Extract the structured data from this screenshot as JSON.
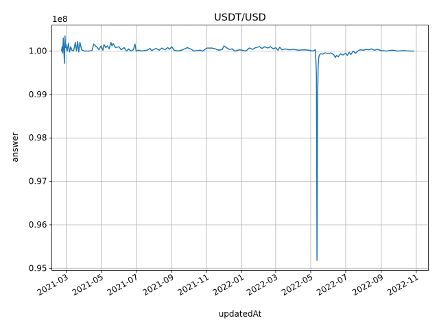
{
  "chart_data": {
    "type": "line",
    "title": "USDT/USD",
    "xlabel": "updatedAt",
    "ylabel": "answer",
    "y_offset_label": "1e8",
    "grid": true,
    "line_color": "#1f77b4",
    "xlim": [
      "2021-02-04",
      "2022-11-22"
    ],
    "ylim": [
      0.9495,
      1.006
    ],
    "x_ticks": [
      {
        "date": "2021-03-01",
        "label": "2021-03"
      },
      {
        "date": "2021-05-01",
        "label": "2021-05"
      },
      {
        "date": "2021-07-01",
        "label": "2021-07"
      },
      {
        "date": "2021-09-01",
        "label": "2021-09"
      },
      {
        "date": "2021-11-01",
        "label": "2021-11"
      },
      {
        "date": "2022-01-01",
        "label": "2022-01"
      },
      {
        "date": "2022-03-01",
        "label": "2022-03"
      },
      {
        "date": "2022-05-01",
        "label": "2022-05"
      },
      {
        "date": "2022-07-01",
        "label": "2022-07"
      },
      {
        "date": "2022-09-01",
        "label": "2022-09"
      },
      {
        "date": "2022-11-01",
        "label": "2022-11"
      }
    ],
    "y_ticks": [
      {
        "value": 0.95,
        "label": "0.95"
      },
      {
        "value": 0.96,
        "label": "0.96"
      },
      {
        "value": 0.97,
        "label": "0.97"
      },
      {
        "value": 0.98,
        "label": "0.98"
      },
      {
        "value": 0.99,
        "label": "0.99"
      },
      {
        "value": 1.0,
        "label": "1.00"
      }
    ],
    "series": [
      {
        "points": [
          [
            "2021-02-21",
            1.0
          ],
          [
            "2021-02-22",
            1.001
          ],
          [
            "2021-02-23",
            0.9995
          ],
          [
            "2021-02-24",
            1.003
          ],
          [
            "2021-02-25",
            1.0005
          ],
          [
            "2021-02-26",
            0.9972
          ],
          [
            "2021-02-27",
            1.0035
          ],
          [
            "2021-02-28",
            1.0008
          ],
          [
            "2021-03-01",
            1.0015
          ],
          [
            "2021-03-03",
            1.0
          ],
          [
            "2021-03-05",
            1.0018
          ],
          [
            "2021-03-07",
            0.9998
          ],
          [
            "2021-03-09",
            1.001
          ],
          [
            "2021-03-11",
            1.0002
          ],
          [
            "2021-03-14",
            1.0
          ],
          [
            "2021-03-17",
            1.002
          ],
          [
            "2021-03-19",
            1.0
          ],
          [
            "2021-03-21",
            1.0022
          ],
          [
            "2021-03-23",
            0.9998
          ],
          [
            "2021-03-25",
            1.002
          ],
          [
            "2021-03-28",
            1.0003
          ],
          [
            "2021-04-01",
            1.0
          ],
          [
            "2021-04-10",
            1.0
          ],
          [
            "2021-04-15",
            1.0001
          ],
          [
            "2021-04-18",
            1.0016
          ],
          [
            "2021-04-21",
            1.0012
          ],
          [
            "2021-04-24",
            1.0009
          ],
          [
            "2021-04-27",
            1.0003
          ],
          [
            "2021-05-01",
            1.0012
          ],
          [
            "2021-05-04",
            1.0002
          ],
          [
            "2021-05-06",
            1.0015
          ],
          [
            "2021-05-09",
            1.0008
          ],
          [
            "2021-05-12",
            1.0012
          ],
          [
            "2021-05-15",
            1.0005
          ],
          [
            "2021-05-18",
            1.002
          ],
          [
            "2021-05-20",
            1.0012
          ],
          [
            "2021-05-22",
            1.0017
          ],
          [
            "2021-05-26",
            1.0008
          ],
          [
            "2021-06-01",
            1.001
          ],
          [
            "2021-06-05",
            1.0003
          ],
          [
            "2021-06-10",
            1.0008
          ],
          [
            "2021-06-14",
            1.0
          ],
          [
            "2021-06-18",
            1.0005
          ],
          [
            "2021-06-22",
            1.0
          ],
          [
            "2021-06-26",
            1.0003
          ],
          [
            "2021-06-29",
            1.0016
          ],
          [
            "2021-07-01",
            1.0
          ],
          [
            "2021-07-05",
            1.0002
          ],
          [
            "2021-07-10",
            1.0
          ],
          [
            "2021-07-20",
            1.0002
          ],
          [
            "2021-07-25",
            1.0006
          ],
          [
            "2021-07-28",
            1.0001
          ],
          [
            "2021-08-01",
            1.0004
          ],
          [
            "2021-08-05",
            1.0006
          ],
          [
            "2021-08-10",
            1.0002
          ],
          [
            "2021-08-15",
            1.0007
          ],
          [
            "2021-08-20",
            1.0003
          ],
          [
            "2021-08-25",
            1.0008
          ],
          [
            "2021-08-28",
            1.0004
          ],
          [
            "2021-09-01",
            1.001
          ],
          [
            "2021-09-05",
            1.0002
          ],
          [
            "2021-09-12",
            1.0
          ],
          [
            "2021-09-20",
            1.0003
          ],
          [
            "2021-09-28",
            1.0008
          ],
          [
            "2021-10-05",
            1.0004
          ],
          [
            "2021-10-10",
            1.0
          ],
          [
            "2021-10-20",
            1.0002
          ],
          [
            "2021-10-25",
            1.0
          ],
          [
            "2021-11-01",
            1.0007
          ],
          [
            "2021-11-10",
            1.0007
          ],
          [
            "2021-11-16",
            1.0005
          ],
          [
            "2021-11-22",
            1.0002
          ],
          [
            "2021-11-28",
            1.0004
          ],
          [
            "2021-12-01",
            1.0012
          ],
          [
            "2021-12-05",
            1.0008
          ],
          [
            "2021-12-10",
            1.0004
          ],
          [
            "2021-12-15",
            1.0005
          ],
          [
            "2021-12-20",
            1.0
          ],
          [
            "2021-12-28",
            1.0003
          ],
          [
            "2022-01-01",
            1.0002
          ],
          [
            "2022-01-08",
            1.0
          ],
          [
            "2022-01-14",
            1.0007
          ],
          [
            "2022-01-20",
            1.0004
          ],
          [
            "2022-01-25",
            1.0008
          ],
          [
            "2022-02-01",
            1.001
          ],
          [
            "2022-02-05",
            1.0006
          ],
          [
            "2022-02-10",
            1.001
          ],
          [
            "2022-02-15",
            1.0007
          ],
          [
            "2022-02-20",
            1.001
          ],
          [
            "2022-02-25",
            1.0005
          ],
          [
            "2022-03-01",
            1.0008
          ],
          [
            "2022-03-05",
            1.0002
          ],
          [
            "2022-03-08",
            1.0009
          ],
          [
            "2022-03-12",
            1.0003
          ],
          [
            "2022-03-18",
            1.0005
          ],
          [
            "2022-03-25",
            1.0003
          ],
          [
            "2022-04-01",
            1.0004
          ],
          [
            "2022-04-10",
            1.0002
          ],
          [
            "2022-04-20",
            1.0003
          ],
          [
            "2022-04-28",
            1.0002
          ],
          [
            "2022-05-05",
            1.0
          ],
          [
            "2022-05-09",
            1.0003
          ],
          [
            "2022-05-10",
            0.998
          ],
          [
            "2022-05-11",
            0.9945
          ],
          [
            "2022-05-12",
            0.9518
          ],
          [
            "2022-05-13",
            0.988
          ],
          [
            "2022-05-14",
            0.9965
          ],
          [
            "2022-05-15",
            0.9985
          ],
          [
            "2022-05-16",
            0.999
          ],
          [
            "2022-05-18",
            0.9994
          ],
          [
            "2022-05-22",
            0.9993
          ],
          [
            "2022-05-26",
            0.9996
          ],
          [
            "2022-06-01",
            0.9994
          ],
          [
            "2022-06-05",
            0.9996
          ],
          [
            "2022-06-10",
            0.9992
          ],
          [
            "2022-06-13",
            0.9985
          ],
          [
            "2022-06-15",
            0.999
          ],
          [
            "2022-06-18",
            0.9987
          ],
          [
            "2022-06-22",
            0.9994
          ],
          [
            "2022-06-26",
            0.9991
          ],
          [
            "2022-07-01",
            0.9995
          ],
          [
            "2022-07-04",
            0.999
          ],
          [
            "2022-07-07",
            0.9997
          ],
          [
            "2022-07-10",
            0.9992
          ],
          [
            "2022-07-14",
            1.0
          ],
          [
            "2022-07-18",
            0.9995
          ],
          [
            "2022-07-22",
            1.0
          ],
          [
            "2022-07-26",
            1.0003
          ],
          [
            "2022-08-01",
            1.0002
          ],
          [
            "2022-08-05",
            1.0004
          ],
          [
            "2022-08-10",
            1.0003
          ],
          [
            "2022-08-15",
            1.0005
          ],
          [
            "2022-08-20",
            1.0002
          ],
          [
            "2022-08-25",
            1.0004
          ],
          [
            "2022-09-01",
            1.0001
          ],
          [
            "2022-09-10",
            1.0
          ],
          [
            "2022-09-20",
            1.0002
          ],
          [
            "2022-09-30",
            1.0
          ],
          [
            "2022-10-10",
            1.0001
          ],
          [
            "2022-10-20",
            1.0
          ],
          [
            "2022-10-28",
            1.0
          ]
        ]
      }
    ]
  }
}
